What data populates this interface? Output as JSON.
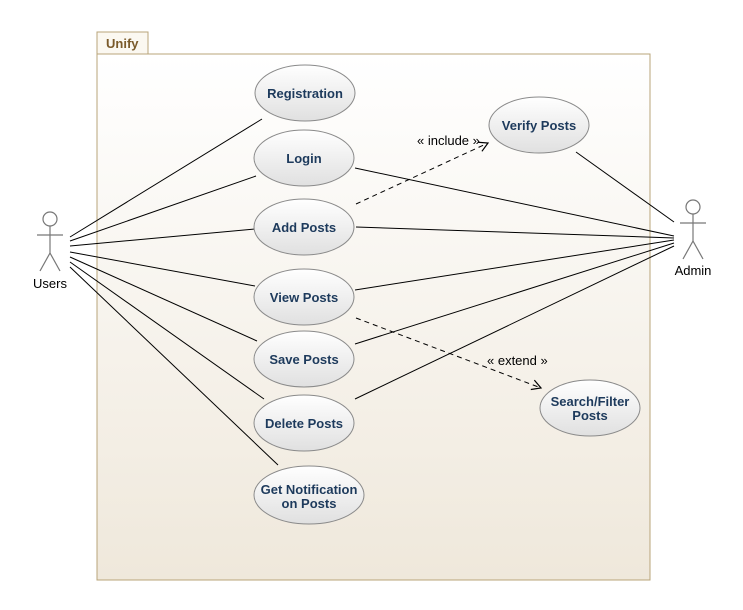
{
  "system": {
    "name": "Unify"
  },
  "actors": {
    "users": "Users",
    "admin": "Admin"
  },
  "use_cases": {
    "registration": [
      "Registration"
    ],
    "login": [
      "Login"
    ],
    "add_posts": [
      "Add Posts"
    ],
    "view_posts": [
      "View Posts"
    ],
    "save_posts": [
      "Save Posts"
    ],
    "delete_posts": [
      "Delete Posts"
    ],
    "get_notification": [
      "Get Notification",
      "on Posts"
    ],
    "verify_posts": [
      "Verify Posts"
    ],
    "search_filter": [
      "Search/Filter",
      "Posts"
    ]
  },
  "relationships": {
    "include": "« include »",
    "extend": "« extend »"
  },
  "colors": {
    "usecase_border": "#8a8a8a",
    "usecase_fill_top": "#ffffff",
    "usecase_fill_bottom": "#e2e2e2",
    "package_border": "#b8a47a",
    "package_fill_top": "#ffffff",
    "package_fill_bottom": "#efe8db",
    "usecase_text": "#1d3a5c"
  }
}
